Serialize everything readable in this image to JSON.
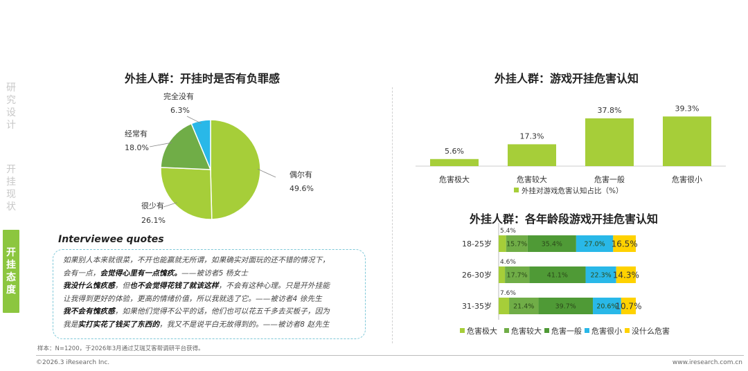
{
  "nav": {
    "items": [
      {
        "label": [
          "研",
          "究",
          "设",
          "计"
        ],
        "active": false
      },
      {
        "label": [
          "开",
          "挂",
          "现",
          "状"
        ],
        "active": false
      },
      {
        "label": [
          "开",
          "挂",
          "态",
          "度"
        ],
        "active": true
      }
    ]
  },
  "colors": {
    "light_green": "#a6ce39",
    "mid_green": "#70ad47",
    "dark_green": "#4f9a36",
    "cyan": "#29b8e8",
    "yellow": "#ffd200",
    "nav_active": "#8cc63f"
  },
  "chart_data": [
    {
      "type": "pie",
      "title": "外挂人群：开挂时是否有负罪感",
      "slices": [
        {
          "name": "偶尔有",
          "value": 49.6,
          "value_label": "49.6%"
        },
        {
          "name": "很少有",
          "value": 26.1,
          "value_label": "26.1%"
        },
        {
          "name": "经常有",
          "value": 18.0,
          "value_label": "18.0%"
        },
        {
          "name": "完全没有",
          "value": 6.3,
          "value_label": "6.3%"
        }
      ]
    },
    {
      "type": "bar",
      "title": "外挂人群：游戏开挂危害认知",
      "categories": [
        "危害极大",
        "危害较大",
        "危害一般",
        "危害很小"
      ],
      "values": [
        5.6,
        17.3,
        37.8,
        39.3
      ],
      "value_labels": [
        "5.6%",
        "17.3%",
        "37.8%",
        "39.3%"
      ],
      "legend": "外挂对游戏危害认知占比（%）",
      "ylim": [
        0,
        40
      ],
      "grid": false
    },
    {
      "type": "bar",
      "stacked": true,
      "horizontal": true,
      "title": "外挂人群：各年龄段游戏开挂危害认知",
      "categories": [
        "18-25岁",
        "26-30岁",
        "31-35岁"
      ],
      "series": [
        {
          "name": "危害极大",
          "values": [
            5.4,
            4.6,
            7.6
          ],
          "labels": [
            "5.4%",
            "4.6%",
            "7.6%"
          ]
        },
        {
          "name": "危害较大",
          "values": [
            15.7,
            17.7,
            21.4
          ],
          "labels": [
            "15.7%",
            "17.7%",
            "21.4%"
          ]
        },
        {
          "name": "危害一般",
          "values": [
            35.4,
            41.1,
            39.7
          ],
          "labels": [
            "35.4%",
            "41.1%",
            "39.7%"
          ]
        },
        {
          "name": "危害很小",
          "values": [
            27.0,
            22.3,
            20.6
          ],
          "labels": [
            "27.0%",
            "22.3%",
            "20.6%"
          ]
        },
        {
          "name": "没什么危害",
          "values": [
            16.5,
            14.3,
            10.7
          ],
          "labels": [
            "16.5%",
            "14.3%",
            "10.7%"
          ]
        }
      ],
      "legend_position": "bottom"
    }
  ],
  "quotes": {
    "heading": "Interviewee quotes",
    "lines": [
      [
        {
          "t": "如果别人本来就很菜，不开也能赢就无所谓，如果确实对面玩的还不错的情况下，"
        }
      ],
      [
        {
          "t": "会有一点，"
        },
        {
          "t": "会觉得心里有一点愧疚。",
          "b": true
        },
        {
          "t": "——被访者5 杨女士"
        }
      ],
      [
        {
          "t": "我没什么愧疚感",
          "b": true
        },
        {
          "t": "，但"
        },
        {
          "t": "也不会觉得花钱了就该这样",
          "b": true
        },
        {
          "t": "，不会有这种心理。只是开外挂能"
        }
      ],
      [
        {
          "t": "让我得到更好的体验，更高的情绪价值，所以我就选了它。——被访者4 徐先生"
        }
      ],
      [
        {
          "t": "我不会有愧疚感",
          "b": true
        },
        {
          "t": "，如果他们觉得不公平的话，他们也可以花五千多去买板子，因为"
        }
      ],
      [
        {
          "t": "我是"
        },
        {
          "t": "实打实花了钱买了东西的",
          "b": true
        },
        {
          "t": "，我又不是说平白无故得到的。——被访者8 赵先生"
        }
      ]
    ]
  },
  "footer": {
    "note": "样本：N=1200，于2026年3月通过艾瑞艾客帮调研平台获得。",
    "copyright": "©2026.3 iResearch Inc.",
    "site": "www.iresearch.com.cn"
  }
}
